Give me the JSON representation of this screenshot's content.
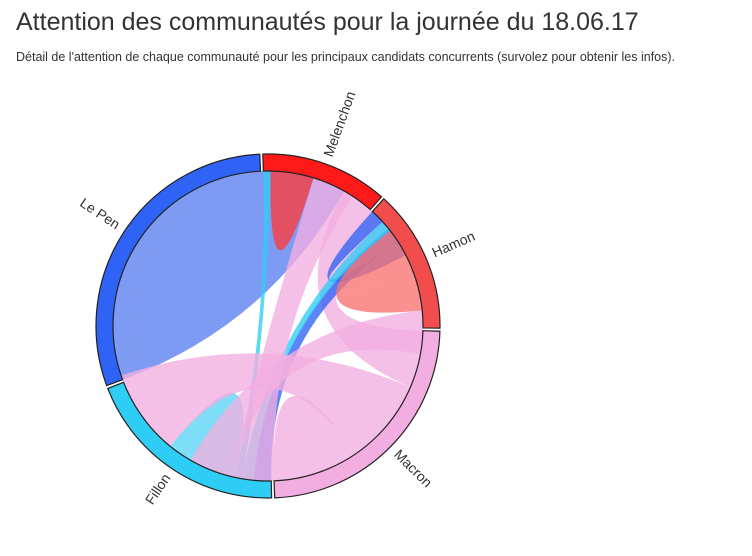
{
  "header": {
    "title": "Attention des communautés pour la journée du 18.06.17",
    "subtitle": "Détail de l'attention de chaque communauté pour les principaux candidats concurrents (survolez pour obtenir les infos)."
  },
  "chart_data": {
    "type": "chord",
    "groups": [
      {
        "name": "Melenchon",
        "color": "#ff1a1a",
        "value": 8
      },
      {
        "name": "Hamon",
        "color": "#f24d4d",
        "value": 9
      },
      {
        "name": "Macron",
        "color": "#f2aee0",
        "value": 16
      },
      {
        "name": "Fillon",
        "color": "#2ecdf5",
        "value": 13
      },
      {
        "name": "Le Pen",
        "color": "#2f63f5",
        "value": 20
      }
    ],
    "chords": [
      {
        "source": "Le Pen",
        "target": "Le Pen",
        "value": 13,
        "color": "#5a7ff0"
      },
      {
        "source": "Macron",
        "target": "Le Pen",
        "value": 4,
        "color": "#f2aee0"
      },
      {
        "source": "Le Pen",
        "target": "Fillon",
        "value": 1.2,
        "color": "#2f63f5"
      },
      {
        "source": "Le Pen",
        "target": "Hamon",
        "value": 1,
        "color": "#2f63f5"
      },
      {
        "source": "Fillon",
        "target": "Hamon",
        "value": 0.8,
        "color": "#2ecdf5"
      },
      {
        "source": "Fillon",
        "target": "Melenchon",
        "value": 0.5,
        "color": "#2ecdf5"
      },
      {
        "source": "Fillon",
        "target": "Fillon",
        "value": 2.5,
        "color": "#5ad4f5"
      },
      {
        "source": "Macron",
        "target": "Fillon",
        "value": 6,
        "color": "#f2aee0"
      },
      {
        "source": "Macron",
        "target": "Macron",
        "value": 3,
        "color": "#f2aee0"
      },
      {
        "source": "Melenchon",
        "target": "Melenchon",
        "value": 1.5,
        "color": "#ff3a3a"
      },
      {
        "source": "Hamon",
        "target": "Hamon",
        "value": 3,
        "color": "#f77272"
      },
      {
        "source": "Macron",
        "target": "Melenchon",
        "value": 3,
        "color": "#f2aee0"
      },
      {
        "source": "Macron",
        "target": "Hamon",
        "value": 3,
        "color": "#f2aee0"
      }
    ]
  }
}
